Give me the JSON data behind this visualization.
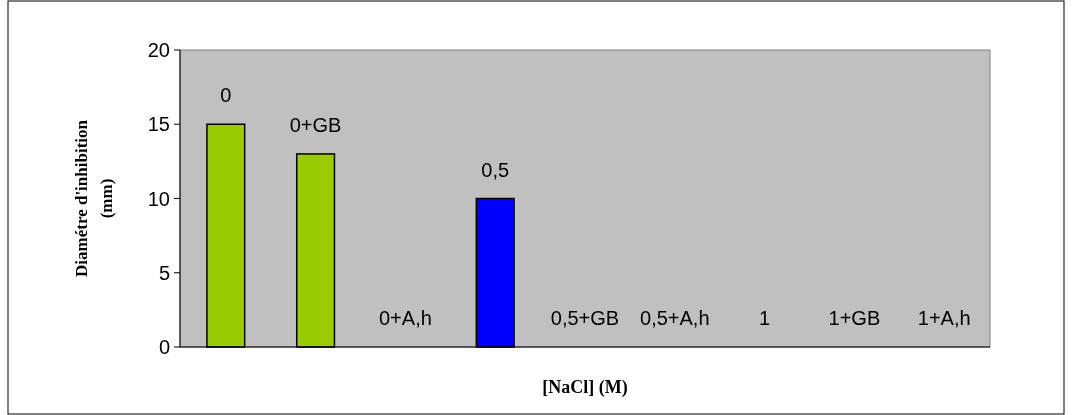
{
  "chart_data": {
    "type": "bar",
    "xlabel": "[NaCl] (M)",
    "ylabel": "Diamétre d'inhibition (mm)",
    "categories": [
      "0",
      "0+GB",
      "0+A,h",
      "0,5",
      "0,5+GB",
      "0,5+A,h",
      "1",
      "1+GB",
      "1+A,h"
    ],
    "values": [
      15,
      13,
      0,
      10,
      0,
      0,
      0,
      0,
      0
    ],
    "colors": [
      "#99cc00",
      "#99cc00",
      "#99cc00",
      "#0000ff",
      "#0000ff",
      "#0000ff",
      "#99cc00",
      "#99cc00",
      "#99cc00"
    ],
    "ylim": [
      0,
      20
    ],
    "yticks": [
      0,
      5,
      10,
      15,
      20
    ],
    "grid": false
  }
}
